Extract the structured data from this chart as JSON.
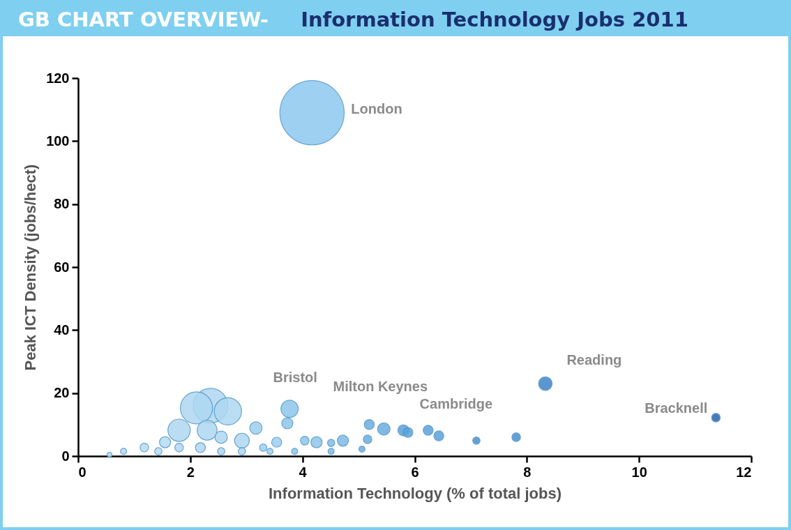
{
  "chart_data": {
    "type": "bubble",
    "title": "GB CHART OVERVIEW-",
    "subtitle": "Information Technology Jobs 2011",
    "xlabel": "Information Technology (% of total jobs)",
    "ylabel": "Peak ICT Density (jobs/hect)",
    "x": [
      4.17,
      3.77,
      3.73,
      2.36,
      2.11,
      2.67,
      1.8,
      2.3,
      3.17,
      2.92,
      2.55,
      1.55,
      1.18,
      0.81,
      0.56,
      1.43,
      1.8,
      2.18,
      2.55,
      2.92,
      3.3,
      3.54,
      3.42,
      3.86,
      4.04,
      4.25,
      4.51,
      4.72,
      4.51,
      5.19,
      5.16,
      5.06,
      5.45,
      5.8,
      5.88,
      6.24,
      6.43,
      7.1,
      7.81,
      8.33,
      11.37
    ],
    "values": [
      109,
      15,
      10.4,
      16,
      15.3,
      14.2,
      8.2,
      8.2,
      8.9,
      4.9,
      6,
      4.4,
      2.7,
      1.5,
      0.4,
      1.5,
      2.7,
      2.7,
      1.5,
      1.5,
      2.7,
      4.4,
      1.5,
      1.5,
      4.9,
      4.4,
      4.2,
      4.9,
      1.5,
      10,
      5.3,
      2.2,
      8.6,
      8.2,
      7.5,
      8.2,
      6.4,
      4.9,
      6,
      23,
      12.2
    ],
    "sizes": [
      1,
      0.072,
      0.03,
      0.29,
      0.25,
      0.18,
      0.12,
      0.095,
      0.037,
      0.053,
      0.037,
      0.03,
      0.018,
      0.009,
      0.006,
      0.013,
      0.018,
      0.024,
      0.013,
      0.013,
      0.013,
      0.024,
      0.009,
      0.009,
      0.018,
      0.03,
      0.013,
      0.03,
      0.009,
      0.024,
      0.018,
      0.009,
      0.037,
      0.03,
      0.024,
      0.024,
      0.024,
      0.013,
      0.018,
      0.045,
      0.018
    ],
    "colors": [
      "#8ec9ef",
      "#8cc6ec",
      "#8cc6ec",
      "#aed8f2",
      "#aed8f2",
      "#aed8f2",
      "#aed8f2",
      "#aed8f2",
      "#9dd0f0",
      "#aed8f2",
      "#aed8f2",
      "#b4dcf4",
      "#b4dcf4",
      "#b4dcf4",
      "#b4dcf4",
      "#b4dcf4",
      "#aed8f2",
      "#aed8f2",
      "#aed8f2",
      "#aed8f2",
      "#9dd0f0",
      "#9dd0f0",
      "#9dd0f0",
      "#8cc6ec",
      "#8cc6ec",
      "#8cc6ec",
      "#7cbce8",
      "#7cbce8",
      "#7cbce8",
      "#6aaee0",
      "#6aaee0",
      "#6aaee0",
      "#6aaee0",
      "#5aa2da",
      "#5aa2da",
      "#5aa2da",
      "#5aa2da",
      "#4a90d0",
      "#4a90d0",
      "#3f84c8",
      "#2a64b0"
    ],
    "xlim": [
      0,
      12
    ],
    "xticks": [
      0,
      2,
      4,
      6,
      8,
      10,
      12
    ],
    "ylim": [
      0,
      120
    ],
    "yticks": [
      0,
      20,
      40,
      60,
      80,
      100,
      120
    ],
    "annotations": [
      {
        "text": "London",
        "x": 4.17,
        "y": 109
      },
      {
        "text": "Bristol",
        "x": 3.77,
        "y": 15
      },
      {
        "text": "Milton Keynes",
        "x": 5.45,
        "y": 8.6
      },
      {
        "text": "Cambridge",
        "x": 6.24,
        "y": 8.2
      },
      {
        "text": "Reading",
        "x": 8.33,
        "y": 23
      },
      {
        "text": "Bracknell",
        "x": 11.37,
        "y": 12.2
      }
    ]
  }
}
